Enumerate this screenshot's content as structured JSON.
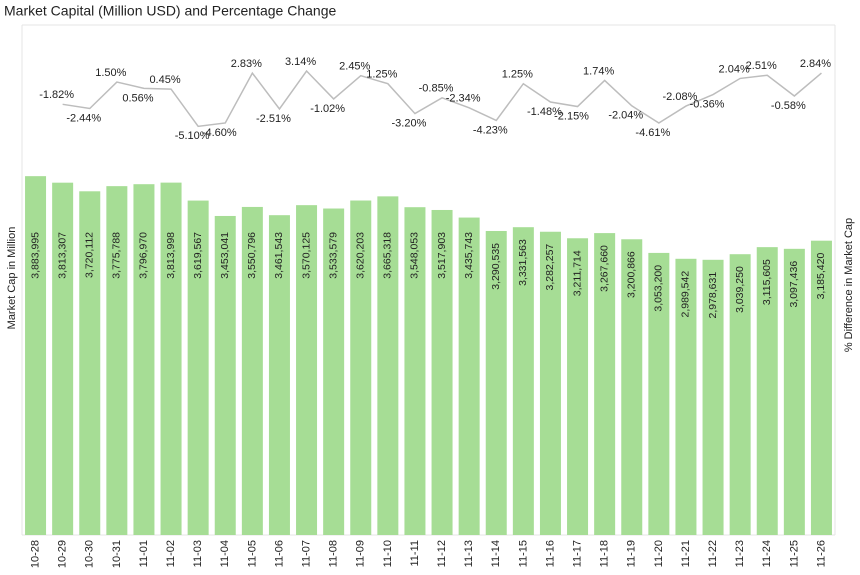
{
  "chart_data": {
    "type": "combo",
    "title": "Market Capital (Million USD) and Percentage Change",
    "ylabel": "Market Cap in Million",
    "y2label": "% Difference in Market Cap",
    "categories": [
      "10-28",
      "10-29",
      "10-30",
      "10-31",
      "11-01",
      "11-02",
      "11-03",
      "11-04",
      "11-05",
      "11-06",
      "11-07",
      "11-08",
      "11-09",
      "11-10",
      "11-11",
      "11-12",
      "11-13",
      "11-14",
      "11-15",
      "11-16",
      "11-17",
      "11-18",
      "11-19",
      "11-20",
      "11-21",
      "11-22",
      "11-23",
      "11-24",
      "11-25",
      "11-26"
    ],
    "ylim": [
      0,
      5520000
    ],
    "y2lim": [
      -66,
      10
    ],
    "series": [
      {
        "type": "bar",
        "color": "#a6dd95",
        "values": [
          3883995,
          3813307,
          3720112,
          3775788,
          3796970,
          3813998,
          3619567,
          3453041,
          3550796,
          3461543,
          3570125,
          3533579,
          3620203,
          3665318,
          3548053,
          3517903,
          3435743,
          3290535,
          3331563,
          3282257,
          3211714,
          3267660,
          3200866,
          3053200,
          2989542,
          2978631,
          3039250,
          3115605,
          3097436,
          3185420
        ],
        "value_labels": [
          "3,883,995",
          "3,813,307",
          "3,720,112",
          "3,775,788",
          "3,796,970",
          "3,813,998",
          "3,619,567",
          "3,453,041",
          "3,550,796",
          "3,461,543",
          "3,570,125",
          "3,533,579",
          "3,620,203",
          "3,665,318",
          "3,548,053",
          "3,517,903",
          "3,435,743",
          "3,290,535",
          "3,331,563",
          "3,282,257",
          "3,211,714",
          "3,267,660",
          "3,200,866",
          "3,053,200",
          "2,989,542",
          "2,978,631",
          "3,039,250",
          "3,115,605",
          "3,097,436",
          "3,185,420"
        ]
      },
      {
        "type": "line",
        "color": "#bdbdbd",
        "axis": "y2",
        "values": [
          null,
          -1.82,
          -2.44,
          1.5,
          0.56,
          0.45,
          -5.1,
          -4.6,
          2.83,
          -2.51,
          3.14,
          -1.02,
          2.45,
          1.25,
          -3.2,
          -0.85,
          -2.34,
          -4.23,
          1.25,
          -1.48,
          -2.15,
          1.74,
          -2.04,
          -4.61,
          -2.08,
          -0.36,
          2.04,
          2.51,
          -0.58,
          2.84
        ],
        "value_labels": [
          null,
          "-1.82%",
          "-2.44%",
          "1.50%",
          "0.56%",
          "0.45%",
          "-5.10%",
          "-4.60%",
          "2.83%",
          "-2.51%",
          "3.14%",
          "-1.02%",
          "2.45%",
          "1.25%",
          "-3.20%",
          "-0.85%",
          "-2.34%",
          "-4.23%",
          "1.25%",
          "-1.48%",
          "-2.15%",
          "1.74%",
          "-2.04%",
          "-4.61%",
          "-2.08%",
          "-0.36%",
          "2.04%",
          "2.51%",
          "-0.58%",
          "2.84%"
        ]
      }
    ]
  }
}
